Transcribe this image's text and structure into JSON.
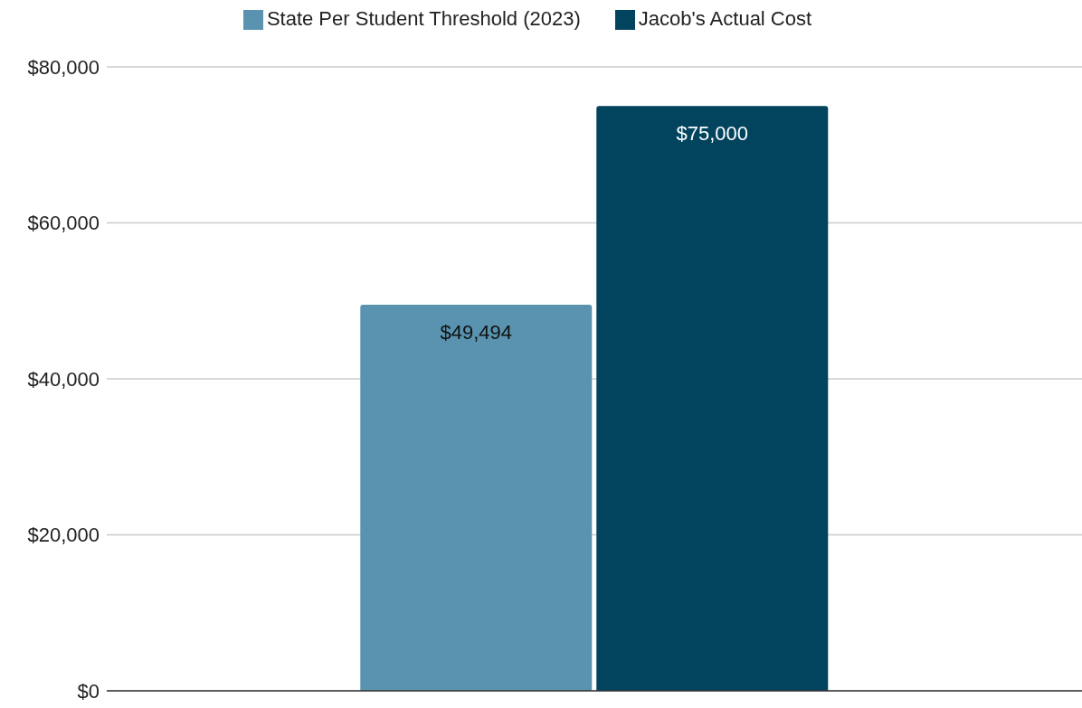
{
  "chart_data": {
    "type": "bar",
    "categories": [
      null
    ],
    "series": [
      {
        "name": "State Per Student Threshold (2023)",
        "color": "#5a93b0",
        "values": [
          49494
        ],
        "value_labels": [
          "$49,494"
        ]
      },
      {
        "name": "Jacob's Actual Cost",
        "color": "#02435e",
        "values": [
          75000
        ],
        "value_labels": [
          "$75,000"
        ]
      }
    ],
    "ylim": [
      0,
      80000
    ],
    "yticks": [
      {
        "value": 0,
        "label": "$0"
      },
      {
        "value": 20000,
        "label": "$20,000"
      },
      {
        "value": 40000,
        "label": "$40,000"
      },
      {
        "value": 60000,
        "label": "$60,000"
      },
      {
        "value": 80000,
        "label": "$80,000"
      }
    ],
    "grid": "y",
    "legend": "top"
  }
}
